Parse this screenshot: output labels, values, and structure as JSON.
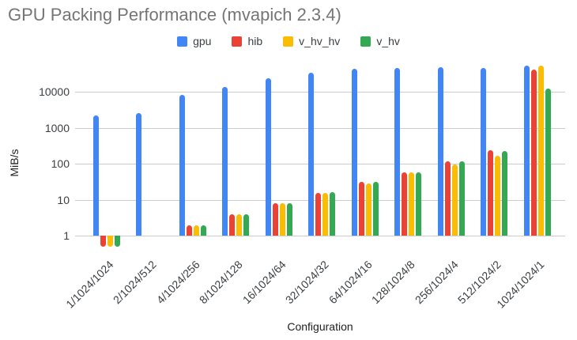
{
  "chart_data": {
    "type": "bar",
    "title": "GPU Packing Performance (mvapich 2.3.4)",
    "xlabel": "Configuration",
    "ylabel": "MiB/s",
    "y_scale": "log",
    "y_ticks": [
      1,
      10,
      100,
      1000,
      10000
    ],
    "ylim": [
      0.4,
      68000
    ],
    "grid": true,
    "legend_position": "top-center",
    "categories": [
      "1/1024/1024",
      "2/1024/512",
      "4/1024/256",
      "8/1024/128",
      "16/1024/64",
      "32/1024/32",
      "64/1024/16",
      "128/1024/8",
      "256/1024/4",
      "512/1024/2",
      "1024/1024/1"
    ],
    "series": [
      {
        "name": "gpu",
        "color": "#4285F4",
        "values": [
          2200,
          2600,
          8300,
          13500,
          24000,
          34000,
          43000,
          44500,
          47500,
          45000,
          53000
        ]
      },
      {
        "name": "hib",
        "color": "#EA4335",
        "values": [
          0.5,
          null,
          1.9,
          4.0,
          8.0,
          15.5,
          31,
          58,
          115,
          240,
          42000
        ]
      },
      {
        "name": "v_hv_hv",
        "color": "#FBBC04",
        "values": [
          0.5,
          null,
          1.9,
          3.9,
          7.8,
          15.0,
          28,
          56,
          95,
          165,
          54000
        ]
      },
      {
        "name": "v_hv",
        "color": "#34A853",
        "values": [
          0.5,
          null,
          1.9,
          4.0,
          8.0,
          16.0,
          31,
          58,
          115,
          230,
          12500
        ]
      }
    ]
  },
  "colors": {
    "title_text": "#757575",
    "axis_text": "#3c4043",
    "gridline": "#cccccc",
    "background": "#ffffff"
  }
}
